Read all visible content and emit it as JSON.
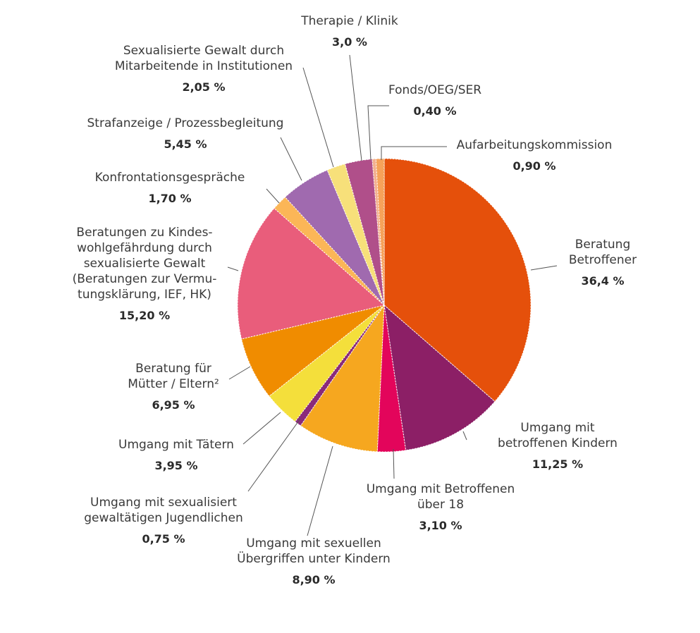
{
  "chart_data": {
    "type": "pie",
    "title": "",
    "start": "12 o'clock, clockwise",
    "slices": [
      {
        "label_lines": [
          "Beratung",
          "Betroffener"
        ],
        "value_text": "36,4 %",
        "value": 36.4,
        "color": "#e5500b"
      },
      {
        "label_lines": [
          "Umgang mit",
          "betroffenen Kindern"
        ],
        "value_text": "11,25 %",
        "value": 11.25,
        "color": "#8c1f66"
      },
      {
        "label_lines": [
          "Umgang mit Betroffenen",
          "über 18"
        ],
        "value_text": "3,10 %",
        "value": 3.1,
        "color": "#e3055b"
      },
      {
        "label_lines": [
          "Umgang mit sexuellen",
          "Übergriffen unter Kindern"
        ],
        "value_text": "8,90 %",
        "value": 8.9,
        "color": "#f6a71f"
      },
      {
        "label_lines": [
          "Umgang mit sexualisiert",
          "gewaltätigen Jugendlichen"
        ],
        "value_text": "0,75 %",
        "value": 0.75,
        "color": "#8a2a7a"
      },
      {
        "label_lines": [
          "Umgang mit Tätern"
        ],
        "value_text": "3,95 %",
        "value": 3.95,
        "color": "#f4df3b"
      },
      {
        "label_lines": [
          "Beratung für",
          "Mütter / Eltern²"
        ],
        "value_text": "6,95 %",
        "value": 6.95,
        "color": "#f08c00"
      },
      {
        "label_lines": [
          "Beratungen zu Kindes-",
          "wohlgefährdung durch",
          "sexualisierte Gewalt",
          "(Beratungen zur Vermu-",
          "tungsklärung, IEF, HK)"
        ],
        "value_text": "15,20 %",
        "value": 15.2,
        "color": "#e95d7b"
      },
      {
        "label_lines": [
          "Konfrontationsgespräche"
        ],
        "value_text": "1,70 %",
        "value": 1.7,
        "color": "#fbb657"
      },
      {
        "label_lines": [
          "Strafanzeige / Prozessbegleitung"
        ],
        "value_text": "5,45 %",
        "value": 5.45,
        "color": "#a06aaf"
      },
      {
        "label_lines": [
          "Sexualisierte Gewalt durch",
          "Mitarbeitende in Institutionen"
        ],
        "value_text": "2,05 %",
        "value": 2.05,
        "color": "#f7e07a"
      },
      {
        "label_lines": [
          "Therapie / Klinik"
        ],
        "value_text": "3,0 %",
        "value": 3.0,
        "color": "#b04f8a"
      },
      {
        "label_lines": [
          "Fonds/OEG/SER"
        ],
        "value_text": "0,40 %",
        "value": 0.4,
        "color": "#f3b08f"
      },
      {
        "label_lines": [
          "Aufarbeitungskommission"
        ],
        "value_text": "0,90 %",
        "value": 0.9,
        "color": "#f6a25a"
      }
    ]
  }
}
